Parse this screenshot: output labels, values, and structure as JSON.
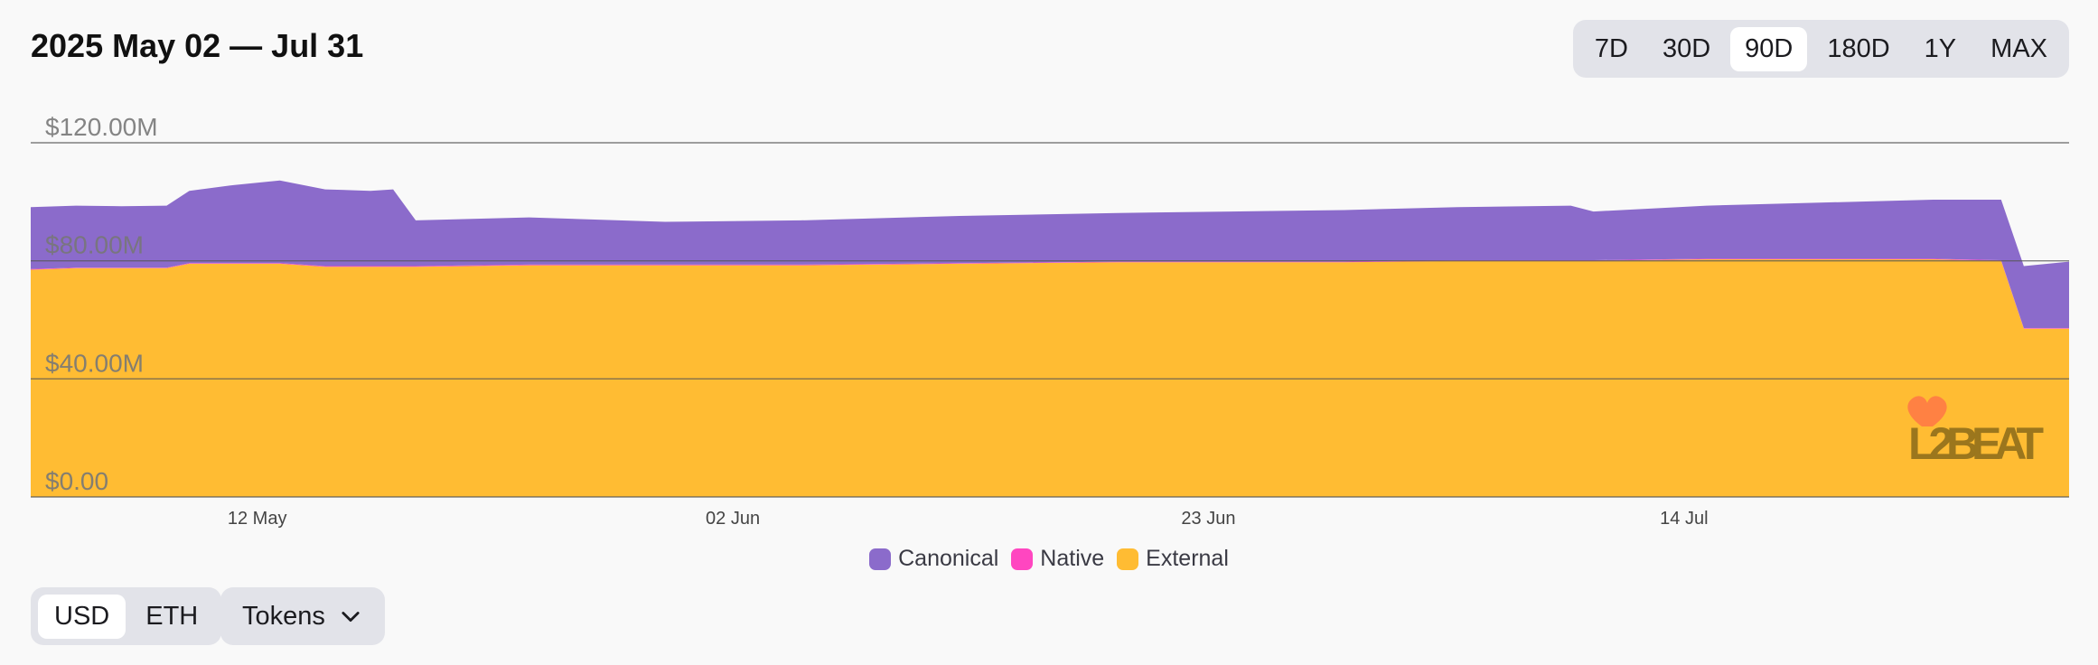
{
  "header": {
    "title": "2025 May 02 — Jul 31"
  },
  "range": {
    "options": [
      "7D",
      "30D",
      "90D",
      "180D",
      "1Y",
      "MAX"
    ],
    "selected": "90D"
  },
  "units": {
    "options": [
      "USD",
      "ETH"
    ],
    "selected": "USD"
  },
  "tokens": {
    "label": "Tokens",
    "icon": "chevron-down-icon"
  },
  "watermark": "L2BEAT",
  "colors": {
    "canonical": "#8b6bcb",
    "native": "#ff46c0",
    "external": "#ffbc33",
    "gridline": "#555555",
    "tick_label": "#777777",
    "x_label": "#444444"
  },
  "chart_data": {
    "type": "area",
    "stacked": true,
    "x_range": [
      "2025-05-02",
      "2025-07-31"
    ],
    "ylim": [
      0,
      120000000
    ],
    "y_ticks": [
      "$0.00",
      "$40.00M",
      "$80.00M",
      "$120.00M"
    ],
    "y_tick_values": [
      0,
      40000000,
      80000000,
      120000000
    ],
    "x_ticks": [
      "12 May",
      "02 Jun",
      "23 Jun",
      "14 Jul"
    ],
    "x_tick_dates": [
      "2025-05-12",
      "2025-06-02",
      "2025-06-23",
      "2025-07-14"
    ],
    "grid": true,
    "legend_position": "bottom",
    "x": [
      "2025-05-02",
      "2025-05-04",
      "2025-05-06",
      "2025-05-08",
      "2025-05-09",
      "2025-05-11",
      "2025-05-13",
      "2025-05-15",
      "2025-05-17",
      "2025-05-18",
      "2025-05-19",
      "2025-05-24",
      "2025-05-30",
      "2025-06-05",
      "2025-06-12",
      "2025-06-19",
      "2025-06-24",
      "2025-06-29",
      "2025-07-04",
      "2025-07-09",
      "2025-07-10",
      "2025-07-15",
      "2025-07-20",
      "2025-07-25",
      "2025-07-28",
      "2025-07-29",
      "2025-07-31"
    ],
    "series": [
      {
        "name": "Canonical",
        "values": [
          21.0,
          21.0,
          20.8,
          21.0,
          24.5,
          26.5,
          28.0,
          26.0,
          25.5,
          26.0,
          15.5,
          16.0,
          14.5,
          15.0,
          16.0,
          16.5,
          17.0,
          17.5,
          18.0,
          18.5,
          16.5,
          18.0,
          19.0,
          20.0,
          20.5,
          21.0,
          22.5
        ]
      },
      {
        "name": "Native",
        "values": [
          0.2,
          0.2,
          0.2,
          0.2,
          0.2,
          0.2,
          0.2,
          0.2,
          0.2,
          0.2,
          0.2,
          0.2,
          0.2,
          0.2,
          0.2,
          0.2,
          0.2,
          0.2,
          0.2,
          0.2,
          0.2,
          0.2,
          0.2,
          0.2,
          0.2,
          0.2,
          0.2
        ]
      },
      {
        "name": "External",
        "values": [
          77.0,
          77.5,
          77.5,
          77.5,
          79.0,
          79.0,
          79.0,
          78.0,
          78.0,
          78.0,
          78.0,
          78.5,
          78.5,
          78.5,
          79.0,
          79.5,
          79.5,
          79.5,
          80.0,
          80.0,
          80.0,
          80.5,
          80.5,
          80.5,
          80.0,
          57.0,
          57.0
        ]
      }
    ],
    "value_unit": "millions USD"
  }
}
